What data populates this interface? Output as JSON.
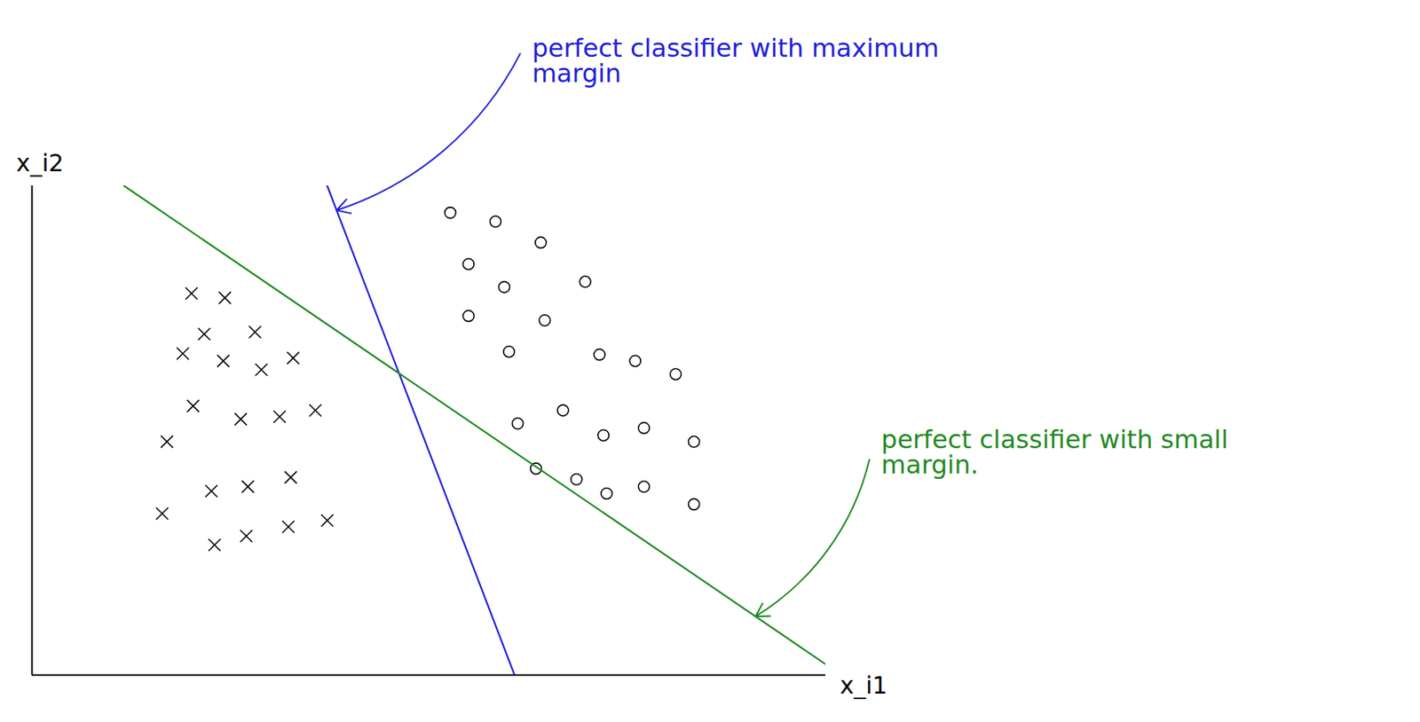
{
  "chart_data": {
    "type": "scatter",
    "x_label": "x_i1",
    "y_label": "x_i2",
    "xlim": [
      0,
      100
    ],
    "ylim": [
      0,
      100
    ],
    "tick_labels": false,
    "grid": false,
    "series": [
      {
        "type": "scatter",
        "marker": "x",
        "color": "#000000",
        "x": [
          20.1,
          24.3,
          21.7,
          28.1,
          19.0,
          24.1,
          28.9,
          32.9,
          20.3,
          26.3,
          31.2,
          35.7,
          17.0,
          16.4,
          22.6,
          27.2,
          32.6,
          23.0,
          27.0,
          32.3,
          37.2
        ],
        "y": [
          78.0,
          77.1,
          69.7,
          70.1,
          65.7,
          64.2,
          62.4,
          64.8,
          55.0,
          52.3,
          52.8,
          54.1,
          47.7,
          33.0,
          37.6,
          38.5,
          40.4,
          26.6,
          28.4,
          30.3,
          31.6
        ]
      },
      {
        "type": "scatter",
        "marker": "o",
        "color": "#000000",
        "x": [
          52.7,
          58.4,
          64.1,
          55.0,
          59.5,
          69.7,
          55.0,
          64.6,
          60.1,
          71.5,
          76.0,
          81.1,
          61.2,
          66.9,
          72.0,
          77.1,
          83.4,
          63.5,
          68.6,
          72.4,
          77.1,
          83.4
        ],
        "y": [
          94.5,
          92.7,
          88.4,
          84.0,
          79.3,
          80.4,
          73.4,
          72.5,
          66.1,
          65.5,
          64.2,
          61.5,
          51.4,
          54.1,
          49.0,
          50.5,
          47.7,
          42.2,
          40.0,
          37.1,
          38.5,
          34.9
        ]
      },
      {
        "type": "line",
        "color": "#2020d8",
        "line_style": "solid",
        "x": [
          37.2,
          60.8
        ],
        "y": [
          100,
          0
        ],
        "annotation": "perfect classifier with maximum margin"
      },
      {
        "type": "line",
        "color": "#1f8a1f",
        "line_style": "solid",
        "x": [
          11.6,
          100
        ],
        "y": [
          100,
          2.2
        ],
        "annotation": "perfect classifier with small margin."
      }
    ]
  }
}
